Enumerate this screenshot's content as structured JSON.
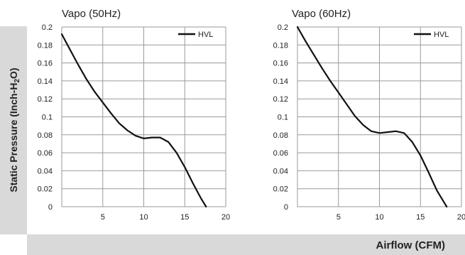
{
  "axes": {
    "ylabel_main": "Static Pressure (Inch-H",
    "ylabel_sub": "2",
    "ylabel_end": "O)",
    "xlabel": "Airflow (CFM)"
  },
  "chart_data": [
    {
      "type": "line",
      "title": "Vapo (50Hz)",
      "xlim": [
        0,
        20
      ],
      "ylim": [
        0,
        0.2
      ],
      "x_ticks": [
        "5",
        "10",
        "15",
        "20"
      ],
      "y_ticks": [
        "0",
        "0.02",
        "0.04",
        "0.06",
        "0.08",
        "0.1",
        "0.12",
        "0.14",
        "0.16",
        "0.18",
        "0.2"
      ],
      "grid": true,
      "legend_position": "top-right",
      "series": [
        {
          "name": "HVL",
          "x": [
            0,
            1,
            2,
            3,
            4,
            5,
            6,
            7,
            8,
            9,
            10,
            11,
            12,
            13,
            14,
            15,
            16,
            17,
            17.6
          ],
          "y": [
            0.192,
            0.175,
            0.158,
            0.142,
            0.128,
            0.116,
            0.104,
            0.093,
            0.085,
            0.079,
            0.076,
            0.077,
            0.077,
            0.072,
            0.06,
            0.044,
            0.026,
            0.009,
            0
          ]
        }
      ]
    },
    {
      "type": "line",
      "title": "Vapo (60Hz)",
      "xlim": [
        0,
        20
      ],
      "ylim": [
        0,
        0.2
      ],
      "x_ticks": [
        "5",
        "10",
        "15",
        "20"
      ],
      "y_ticks": [
        "0",
        "0.02",
        "0.04",
        "0.06",
        "0.08",
        "0.1",
        "0.12",
        "0.14",
        "0.16",
        "0.18",
        "0.2"
      ],
      "grid": true,
      "legend_position": "top-right",
      "series": [
        {
          "name": "HVL",
          "x": [
            0,
            1,
            2,
            3,
            4,
            5,
            6,
            7,
            8,
            9,
            10,
            11,
            12,
            13,
            14,
            15,
            16,
            17,
            18,
            18.2
          ],
          "y": [
            0.2,
            0.184,
            0.169,
            0.154,
            0.14,
            0.127,
            0.114,
            0.101,
            0.091,
            0.084,
            0.082,
            0.083,
            0.084,
            0.082,
            0.072,
            0.057,
            0.038,
            0.018,
            0.003,
            0
          ]
        }
      ]
    }
  ]
}
